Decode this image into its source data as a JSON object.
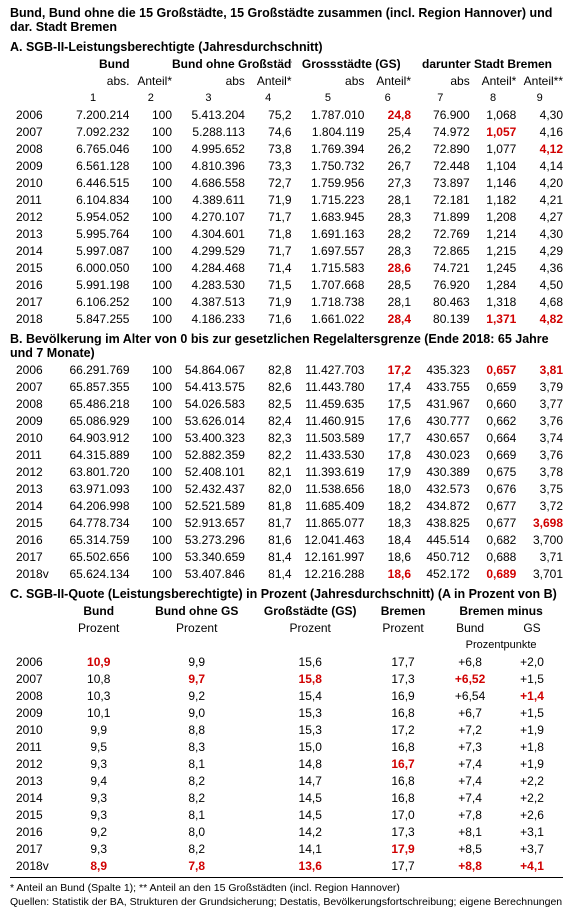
{
  "title": "Bund, Bund ohne die 15 Großstädte, 15 Großstädte zusammen (incl. Region Hannover) und dar. Stadt Bremen",
  "sectionA": {
    "title": "A. SGB-II-Leistungsberechtigte (Jahresdurchschnitt)",
    "groups": [
      "Bund",
      "Bund ohne Großstädte",
      "Grossstädte (GS)",
      "darunter Stadt Bremen"
    ],
    "heads": [
      "abs.",
      "Anteil*",
      "abs",
      "Anteil*",
      "abs",
      "Anteil*",
      "abs",
      "Anteil*",
      "Anteil**"
    ],
    "nums": [
      "1",
      "2",
      "3",
      "4",
      "5",
      "6",
      "7",
      "8",
      "9"
    ],
    "rows": [
      {
        "y": "2006",
        "c": [
          "7.200.214",
          "100",
          "5.413.204",
          "75,2",
          "1.787.010",
          "24,8",
          "76.900",
          "1,068",
          "4,30"
        ],
        "red": [
          5
        ]
      },
      {
        "y": "2007",
        "c": [
          "7.092.232",
          "100",
          "5.288.113",
          "74,6",
          "1.804.119",
          "25,4",
          "74.972",
          "1,057",
          "4,16"
        ],
        "red": [
          7
        ]
      },
      {
        "y": "2008",
        "c": [
          "6.765.046",
          "100",
          "4.995.652",
          "73,8",
          "1.769.394",
          "26,2",
          "72.890",
          "1,077",
          "4,12"
        ],
        "red": [
          8
        ]
      },
      {
        "y": "2009",
        "c": [
          "6.561.128",
          "100",
          "4.810.396",
          "73,3",
          "1.750.732",
          "26,7",
          "72.448",
          "1,104",
          "4,14"
        ]
      },
      {
        "y": "2010",
        "c": [
          "6.446.515",
          "100",
          "4.686.558",
          "72,7",
          "1.759.956",
          "27,3",
          "73.897",
          "1,146",
          "4,20"
        ]
      },
      {
        "y": "2011",
        "c": [
          "6.104.834",
          "100",
          "4.389.611",
          "71,9",
          "1.715.223",
          "28,1",
          "72.181",
          "1,182",
          "4,21"
        ]
      },
      {
        "y": "2012",
        "c": [
          "5.954.052",
          "100",
          "4.270.107",
          "71,7",
          "1.683.945",
          "28,3",
          "71.899",
          "1,208",
          "4,27"
        ]
      },
      {
        "y": "2013",
        "c": [
          "5.995.764",
          "100",
          "4.304.601",
          "71,8",
          "1.691.163",
          "28,2",
          "72.769",
          "1,214",
          "4,30"
        ]
      },
      {
        "y": "2014",
        "c": [
          "5.997.087",
          "100",
          "4.299.529",
          "71,7",
          "1.697.557",
          "28,3",
          "72.865",
          "1,215",
          "4,29"
        ]
      },
      {
        "y": "2015",
        "c": [
          "6.000.050",
          "100",
          "4.284.468",
          "71,4",
          "1.715.583",
          "28,6",
          "74.721",
          "1,245",
          "4,36"
        ],
        "red": [
          5
        ]
      },
      {
        "y": "2016",
        "c": [
          "5.991.198",
          "100",
          "4.283.530",
          "71,5",
          "1.707.668",
          "28,5",
          "76.920",
          "1,284",
          "4,50"
        ]
      },
      {
        "y": "2017",
        "c": [
          "6.106.252",
          "100",
          "4.387.513",
          "71,9",
          "1.718.738",
          "28,1",
          "80.463",
          "1,318",
          "4,68"
        ]
      },
      {
        "y": "2018",
        "c": [
          "5.847.255",
          "100",
          "4.186.233",
          "71,6",
          "1.661.022",
          "28,4",
          "80.139",
          "1,371",
          "4,82"
        ],
        "red": [
          5,
          7,
          8
        ]
      }
    ]
  },
  "sectionB": {
    "title": "B. Bevölkerung im Alter von 0 bis zur gesetzlichen Regelaltersgrenze (Ende 2018: 65 Jahre und 7 Monate)",
    "rows": [
      {
        "y": "2006",
        "c": [
          "66.291.769",
          "100",
          "54.864.067",
          "82,8",
          "11.427.703",
          "17,2",
          "435.323",
          "0,657",
          "3,81"
        ],
        "red": [
          5,
          7,
          8
        ]
      },
      {
        "y": "2007",
        "c": [
          "65.857.355",
          "100",
          "54.413.575",
          "82,6",
          "11.443.780",
          "17,4",
          "433.755",
          "0,659",
          "3,79"
        ]
      },
      {
        "y": "2008",
        "c": [
          "65.486.218",
          "100",
          "54.026.583",
          "82,5",
          "11.459.635",
          "17,5",
          "431.967",
          "0,660",
          "3,77"
        ]
      },
      {
        "y": "2009",
        "c": [
          "65.086.929",
          "100",
          "53.626.014",
          "82,4",
          "11.460.915",
          "17,6",
          "430.777",
          "0,662",
          "3,76"
        ]
      },
      {
        "y": "2010",
        "c": [
          "64.903.912",
          "100",
          "53.400.323",
          "82,3",
          "11.503.589",
          "17,7",
          "430.657",
          "0,664",
          "3,74"
        ]
      },
      {
        "y": "2011",
        "c": [
          "64.315.889",
          "100",
          "52.882.359",
          "82,2",
          "11.433.530",
          "17,8",
          "430.023",
          "0,669",
          "3,76"
        ]
      },
      {
        "y": "2012",
        "c": [
          "63.801.720",
          "100",
          "52.408.101",
          "82,1",
          "11.393.619",
          "17,9",
          "430.389",
          "0,675",
          "3,78"
        ]
      },
      {
        "y": "2013",
        "c": [
          "63.971.093",
          "100",
          "52.432.437",
          "82,0",
          "11.538.656",
          "18,0",
          "432.573",
          "0,676",
          "3,75"
        ]
      },
      {
        "y": "2014",
        "c": [
          "64.206.998",
          "100",
          "52.521.589",
          "81,8",
          "11.685.409",
          "18,2",
          "434.872",
          "0,677",
          "3,72"
        ]
      },
      {
        "y": "2015",
        "c": [
          "64.778.734",
          "100",
          "52.913.657",
          "81,7",
          "11.865.077",
          "18,3",
          "438.825",
          "0,677",
          "3,698"
        ],
        "red": [
          8
        ]
      },
      {
        "y": "2016",
        "c": [
          "65.314.759",
          "100",
          "53.273.296",
          "81,6",
          "12.041.463",
          "18,4",
          "445.514",
          "0,682",
          "3,700"
        ]
      },
      {
        "y": "2017",
        "c": [
          "65.502.656",
          "100",
          "53.340.659",
          "81,4",
          "12.161.997",
          "18,6",
          "450.712",
          "0,688",
          "3,71"
        ]
      },
      {
        "y": "2018v",
        "c": [
          "65.624.134",
          "100",
          "53.407.846",
          "81,4",
          "12.216.288",
          "18,6",
          "452.172",
          "0,689",
          "3,701"
        ],
        "red": [
          5,
          7
        ]
      }
    ]
  },
  "sectionC": {
    "title": "C. SGB-II-Quote (Leistungsberechtigte) in Prozent (Jahresdurchschnitt) (A in Prozent von B)",
    "groups": [
      "Bund",
      "Bund ohne GS",
      "Großstädte (GS)",
      "Bremen",
      "Bremen minus"
    ],
    "subheads": [
      "Prozent",
      "Prozent",
      "Prozent",
      "Prozent",
      "Bund",
      "GS"
    ],
    "unitline": "Prozentpunkte",
    "rows": [
      {
        "y": "2006",
        "c": [
          "10,9",
          "9,9",
          "15,6",
          "17,7",
          "+6,8",
          "+2,0"
        ],
        "red": [
          0
        ]
      },
      {
        "y": "2007",
        "c": [
          "10,8",
          "9,7",
          "15,8",
          "17,3",
          "+6,52",
          "+1,5"
        ],
        "red": [
          1,
          2,
          4
        ]
      },
      {
        "y": "2008",
        "c": [
          "10,3",
          "9,2",
          "15,4",
          "16,9",
          "+6,54",
          "+1,4"
        ],
        "red": [
          5
        ]
      },
      {
        "y": "2009",
        "c": [
          "10,1",
          "9,0",
          "15,3",
          "16,8",
          "+6,7",
          "+1,5"
        ]
      },
      {
        "y": "2010",
        "c": [
          "9,9",
          "8,8",
          "15,3",
          "17,2",
          "+7,2",
          "+1,9"
        ]
      },
      {
        "y": "2011",
        "c": [
          "9,5",
          "8,3",
          "15,0",
          "16,8",
          "+7,3",
          "+1,8"
        ]
      },
      {
        "y": "2012",
        "c": [
          "9,3",
          "8,1",
          "14,8",
          "16,7",
          "+7,4",
          "+1,9"
        ],
        "red": [
          3
        ]
      },
      {
        "y": "2013",
        "c": [
          "9,4",
          "8,2",
          "14,7",
          "16,8",
          "+7,4",
          "+2,2"
        ]
      },
      {
        "y": "2014",
        "c": [
          "9,3",
          "8,2",
          "14,5",
          "16,8",
          "+7,4",
          "+2,2"
        ]
      },
      {
        "y": "2015",
        "c": [
          "9,3",
          "8,1",
          "14,5",
          "17,0",
          "+7,8",
          "+2,6"
        ]
      },
      {
        "y": "2016",
        "c": [
          "9,2",
          "8,0",
          "14,2",
          "17,3",
          "+8,1",
          "+3,1"
        ]
      },
      {
        "y": "2017",
        "c": [
          "9,3",
          "8,2",
          "14,1",
          "17,9",
          "+8,5",
          "+3,7"
        ],
        "red": [
          3
        ]
      },
      {
        "y": "2018v",
        "c": [
          "8,9",
          "7,8",
          "13,6",
          "17,7",
          "+8,8",
          "+4,1"
        ],
        "red": [
          0,
          1,
          2,
          4,
          5
        ]
      }
    ]
  },
  "footnote1": "* Anteil an Bund (Spalte 1); ** Anteil an den 15 Großstädten (incl. Region Hannover)",
  "footnote2": "Quellen: Statistik der BA, Strukturen der Grundsicherung; Destatis, Bevölkerungsfortschreibung; eigene Berechnungen"
}
